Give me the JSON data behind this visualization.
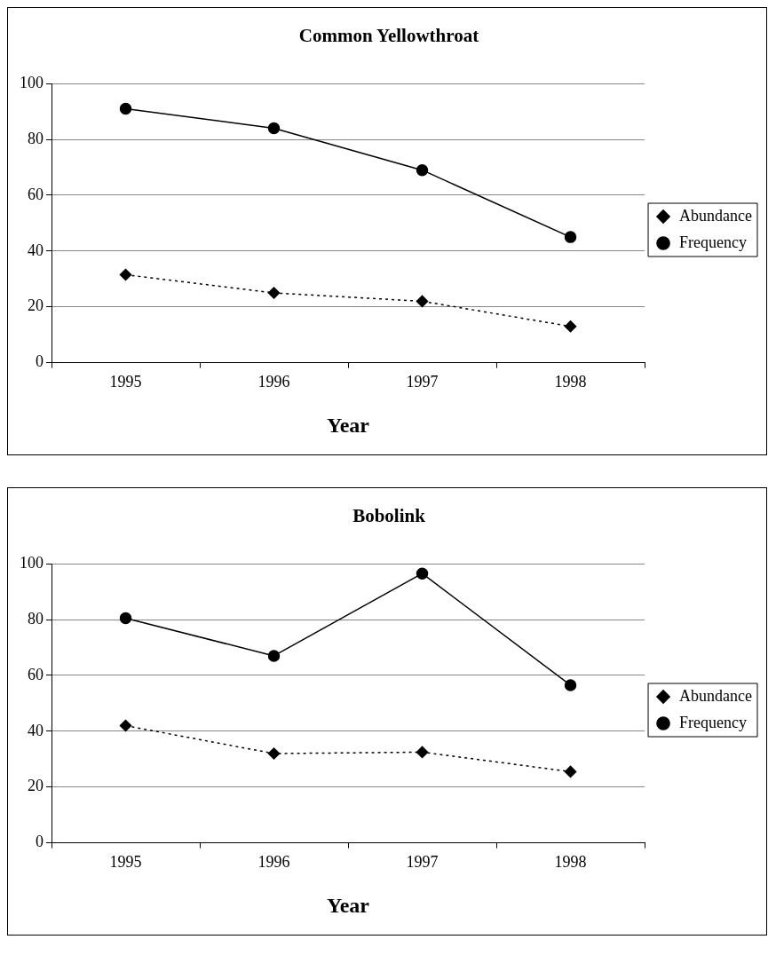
{
  "chart_data": [
    {
      "type": "line",
      "title": "Common Yellowthroat",
      "xlabel": "Year",
      "categories": [
        "1995",
        "1996",
        "1997",
        "1998"
      ],
      "series": [
        {
          "name": "Abundance",
          "color": "#000000",
          "values": [
            31.5,
            25,
            22,
            13
          ],
          "marker": "diamond",
          "line_style": "dotted"
        },
        {
          "name": "Frequency",
          "color": "#000000",
          "values": [
            91,
            84,
            69,
            45
          ],
          "marker": "circle",
          "line_style": "solid"
        }
      ],
      "ylim": [
        0,
        100
      ],
      "yticks": [
        0,
        20,
        40,
        60,
        80,
        100
      ],
      "grid": "y",
      "legend": "right"
    },
    {
      "type": "line",
      "title": "Bobolink",
      "xlabel": "Year",
      "categories": [
        "1995",
        "1996",
        "1997",
        "1998"
      ],
      "series": [
        {
          "name": "Abundance",
          "color": "#000000",
          "values": [
            42,
            32,
            32.5,
            25.5
          ],
          "marker": "diamond",
          "line_style": "dotted"
        },
        {
          "name": "Frequency",
          "color": "#000000",
          "values": [
            80.5,
            67,
            96.5,
            56.5
          ],
          "marker": "circle",
          "line_style": "solid"
        }
      ],
      "ylim": [
        0,
        100
      ],
      "yticks": [
        0,
        20,
        40,
        60,
        80,
        100
      ],
      "grid": "y",
      "legend": "right"
    }
  ]
}
